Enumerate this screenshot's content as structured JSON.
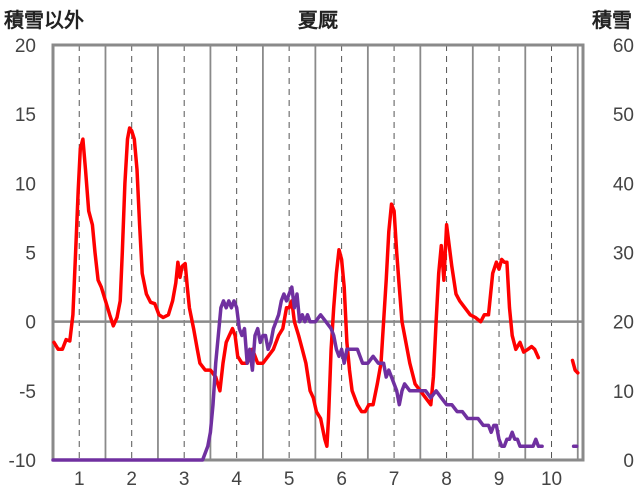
{
  "chart_data": {
    "type": "line",
    "title": "夏厩",
    "left_axis_label": "積雪以外",
    "right_axis_label": "積雪",
    "x_range": [
      0.5,
      10.6
    ],
    "x_ticks": [
      "1",
      "2",
      "3",
      "4",
      "5",
      "6",
      "7",
      "8",
      "9",
      "10"
    ],
    "y_left": {
      "range": [
        -10,
        20
      ],
      "ticks": [
        "-10",
        "-5",
        "0",
        "5",
        "10",
        "15",
        "20"
      ]
    },
    "y_right": {
      "range": [
        0,
        60
      ],
      "ticks": [
        "0",
        "10",
        "20",
        "30",
        "40",
        "50",
        "60"
      ]
    },
    "grid": {
      "vertical_dashed": true,
      "zero_line": true
    },
    "series": [
      {
        "color": "#ff0000",
        "axis": "left",
        "segments": [
          [
            [
              0.52,
              -1.5
            ],
            [
              0.6,
              -2.0
            ],
            [
              0.68,
              -2.0
            ],
            [
              0.75,
              -1.3
            ],
            [
              0.82,
              -1.4
            ],
            [
              0.88,
              0.5
            ],
            [
              0.93,
              5.0
            ],
            [
              0.98,
              9.5
            ],
            [
              1.02,
              12.5
            ],
            [
              1.07,
              13.2
            ],
            [
              1.12,
              11.0
            ],
            [
              1.18,
              8.0
            ],
            [
              1.25,
              7.0
            ],
            [
              1.3,
              5.0
            ],
            [
              1.36,
              3.0
            ],
            [
              1.42,
              2.5
            ],
            [
              1.5,
              1.5
            ],
            [
              1.58,
              0.5
            ],
            [
              1.65,
              -0.3
            ],
            [
              1.72,
              0.3
            ],
            [
              1.78,
              1.5
            ],
            [
              1.82,
              5.0
            ],
            [
              1.87,
              10.0
            ],
            [
              1.92,
              13.2
            ],
            [
              1.96,
              14.0
            ],
            [
              2.0,
              13.8
            ],
            [
              2.05,
              13.2
            ],
            [
              2.1,
              11.0
            ],
            [
              2.15,
              7.0
            ],
            [
              2.2,
              3.5
            ],
            [
              2.28,
              2.0
            ],
            [
              2.36,
              1.4
            ],
            [
              2.44,
              1.3
            ],
            [
              2.52,
              0.5
            ],
            [
              2.6,
              0.3
            ],
            [
              2.7,
              0.5
            ],
            [
              2.78,
              1.5
            ],
            [
              2.84,
              2.8
            ],
            [
              2.88,
              4.3
            ],
            [
              2.92,
              3.2
            ],
            [
              2.96,
              4.0
            ],
            [
              3.02,
              4.2
            ],
            [
              3.06,
              2.5
            ],
            [
              3.1,
              1.0
            ],
            [
              3.18,
              -0.5
            ],
            [
              3.25,
              -2.0
            ],
            [
              3.3,
              -3.0
            ],
            [
              3.4,
              -3.5
            ],
            [
              3.5,
              -3.5
            ],
            [
              3.6,
              -4.0
            ],
            [
              3.68,
              -5.0
            ],
            [
              3.74,
              -3.0
            ],
            [
              3.8,
              -1.5
            ],
            [
              3.86,
              -1.0
            ],
            [
              3.92,
              -0.5
            ],
            [
              3.97,
              -1.0
            ],
            [
              4.02,
              -2.5
            ],
            [
              4.1,
              -3.0
            ],
            [
              4.2,
              -3.0
            ],
            [
              4.3,
              -2.0
            ],
            [
              4.4,
              -3.0
            ],
            [
              4.5,
              -3.0
            ],
            [
              4.6,
              -2.5
            ],
            [
              4.7,
              -2.0
            ],
            [
              4.8,
              -1.0
            ],
            [
              4.88,
              -0.5
            ],
            [
              4.95,
              1.0
            ],
            [
              5.0,
              1.0
            ],
            [
              5.05,
              1.5
            ],
            [
              5.1,
              0.0
            ],
            [
              5.18,
              -1.0
            ],
            [
              5.25,
              -2.0
            ],
            [
              5.32,
              -3.0
            ],
            [
              5.4,
              -5.0
            ],
            [
              5.46,
              -5.5
            ],
            [
              5.52,
              -6.5
            ],
            [
              5.6,
              -7.0
            ],
            [
              5.68,
              -8.5
            ],
            [
              5.72,
              -9.0
            ],
            [
              5.75,
              -7.0
            ],
            [
              5.8,
              -2.0
            ],
            [
              5.85,
              1.0
            ],
            [
              5.9,
              3.5
            ],
            [
              5.95,
              5.2
            ],
            [
              6.0,
              4.5
            ],
            [
              6.05,
              2.5
            ],
            [
              6.1,
              -1.5
            ],
            [
              6.15,
              -3.5
            ],
            [
              6.2,
              -5.0
            ],
            [
              6.3,
              -6.0
            ],
            [
              6.38,
              -6.5
            ],
            [
              6.45,
              -6.5
            ],
            [
              6.52,
              -6.0
            ],
            [
              6.6,
              -6.0
            ],
            [
              6.68,
              -4.5
            ],
            [
              6.75,
              -3.0
            ],
            [
              6.8,
              0.0
            ],
            [
              6.85,
              3.0
            ],
            [
              6.9,
              6.5
            ],
            [
              6.95,
              8.5
            ],
            [
              7.0,
              8.0
            ],
            [
              7.05,
              5.0
            ],
            [
              7.1,
              2.5
            ],
            [
              7.15,
              0.0
            ],
            [
              7.2,
              -1.0
            ],
            [
              7.3,
              -3.0
            ],
            [
              7.4,
              -4.5
            ],
            [
              7.5,
              -5.0
            ],
            [
              7.6,
              -5.5
            ],
            [
              7.7,
              -6.0
            ],
            [
              7.75,
              -4.0
            ],
            [
              7.8,
              0.0
            ],
            [
              7.85,
              3.5
            ],
            [
              7.9,
              5.5
            ],
            [
              7.95,
              3.0
            ],
            [
              8.0,
              7.0
            ],
            [
              8.05,
              5.5
            ],
            [
              8.1,
              4.0
            ],
            [
              8.18,
              2.0
            ],
            [
              8.25,
              1.5
            ],
            [
              8.35,
              1.0
            ],
            [
              8.45,
              0.5
            ],
            [
              8.55,
              0.3
            ],
            [
              8.65,
              0.0
            ],
            [
              8.72,
              0.5
            ],
            [
              8.8,
              0.5
            ],
            [
              8.88,
              3.5
            ],
            [
              8.95,
              4.3
            ],
            [
              9.0,
              3.8
            ],
            [
              9.05,
              4.5
            ],
            [
              9.1,
              4.3
            ],
            [
              9.15,
              4.3
            ],
            [
              9.2,
              1.0
            ],
            [
              9.25,
              -1.0
            ],
            [
              9.32,
              -2.0
            ],
            [
              9.4,
              -1.5
            ],
            [
              9.47,
              -2.2
            ],
            [
              9.55,
              -2.0
            ],
            [
              9.62,
              -1.8
            ],
            [
              9.68,
              -2.0
            ],
            [
              9.75,
              -2.6
            ]
          ],
          [
            [
              10.4,
              -2.8
            ],
            [
              10.45,
              -3.5
            ],
            [
              10.5,
              -3.7
            ]
          ]
        ]
      },
      {
        "color": "#7030a0",
        "axis": "right",
        "segments": [
          [
            [
              0.5,
              0
            ],
            [
              3.35,
              0
            ],
            [
              3.4,
              1
            ],
            [
              3.45,
              2
            ],
            [
              3.5,
              4
            ],
            [
              3.55,
              8
            ],
            [
              3.6,
              14
            ],
            [
              3.65,
              18
            ],
            [
              3.7,
              22
            ],
            [
              3.75,
              23
            ],
            [
              3.8,
              22
            ],
            [
              3.85,
              23
            ],
            [
              3.9,
              22
            ],
            [
              3.95,
              23
            ],
            [
              4.0,
              22
            ],
            [
              4.05,
              19
            ],
            [
              4.1,
              18
            ],
            [
              4.15,
              19
            ],
            [
              4.2,
              14
            ],
            [
              4.25,
              16
            ],
            [
              4.3,
              13
            ],
            [
              4.35,
              18
            ],
            [
              4.4,
              19
            ],
            [
              4.45,
              17
            ],
            [
              4.5,
              18
            ],
            [
              4.55,
              18
            ],
            [
              4.6,
              16
            ],
            [
              4.65,
              17
            ],
            [
              4.7,
              19
            ],
            [
              4.75,
              20
            ],
            [
              4.8,
              21
            ],
            [
              4.85,
              23
            ],
            [
              4.9,
              24
            ],
            [
              4.95,
              23
            ],
            [
              5.0,
              24
            ],
            [
              5.05,
              25
            ],
            [
              5.1,
              22
            ],
            [
              5.15,
              24
            ],
            [
              5.2,
              20
            ],
            [
              5.25,
              21
            ],
            [
              5.3,
              20
            ],
            [
              5.35,
              21
            ],
            [
              5.4,
              20
            ],
            [
              5.5,
              20
            ],
            [
              5.6,
              21
            ],
            [
              5.7,
              20
            ],
            [
              5.8,
              19
            ],
            [
              5.85,
              18
            ],
            [
              5.9,
              16
            ],
            [
              5.95,
              15
            ],
            [
              6.0,
              16
            ],
            [
              6.05,
              14
            ],
            [
              6.1,
              16
            ],
            [
              6.15,
              16
            ],
            [
              6.2,
              16
            ],
            [
              6.3,
              16
            ],
            [
              6.4,
              14
            ],
            [
              6.5,
              14
            ],
            [
              6.6,
              15
            ],
            [
              6.7,
              14
            ],
            [
              6.8,
              14
            ],
            [
              6.85,
              12
            ],
            [
              6.9,
              13
            ],
            [
              6.95,
              12
            ],
            [
              7.0,
              11
            ],
            [
              7.05,
              10
            ],
            [
              7.1,
              8
            ],
            [
              7.15,
              10
            ],
            [
              7.2,
              11
            ],
            [
              7.3,
              10
            ],
            [
              7.4,
              10
            ],
            [
              7.5,
              10
            ],
            [
              7.6,
              10
            ],
            [
              7.7,
              9
            ],
            [
              7.8,
              10
            ],
            [
              7.9,
              9
            ],
            [
              8.0,
              8
            ],
            [
              8.1,
              8
            ],
            [
              8.2,
              7
            ],
            [
              8.3,
              7
            ],
            [
              8.4,
              6
            ],
            [
              8.5,
              6
            ],
            [
              8.6,
              6
            ],
            [
              8.7,
              5
            ],
            [
              8.8,
              5
            ],
            [
              8.85,
              4
            ],
            [
              8.9,
              5
            ],
            [
              8.95,
              5
            ],
            [
              9.0,
              3
            ],
            [
              9.05,
              2
            ],
            [
              9.1,
              2
            ],
            [
              9.15,
              3
            ],
            [
              9.2,
              3
            ],
            [
              9.25,
              4
            ],
            [
              9.3,
              3
            ],
            [
              9.35,
              3
            ],
            [
              9.4,
              2
            ],
            [
              9.45,
              2
            ],
            [
              9.5,
              2
            ],
            [
              9.6,
              2
            ],
            [
              9.65,
              2
            ],
            [
              9.7,
              3
            ],
            [
              9.75,
              2
            ]
          ],
          [
            [
              9.78,
              2
            ],
            [
              9.82,
              2
            ]
          ],
          [
            [
              10.42,
              2
            ],
            [
              10.48,
              2
            ]
          ]
        ]
      }
    ]
  }
}
